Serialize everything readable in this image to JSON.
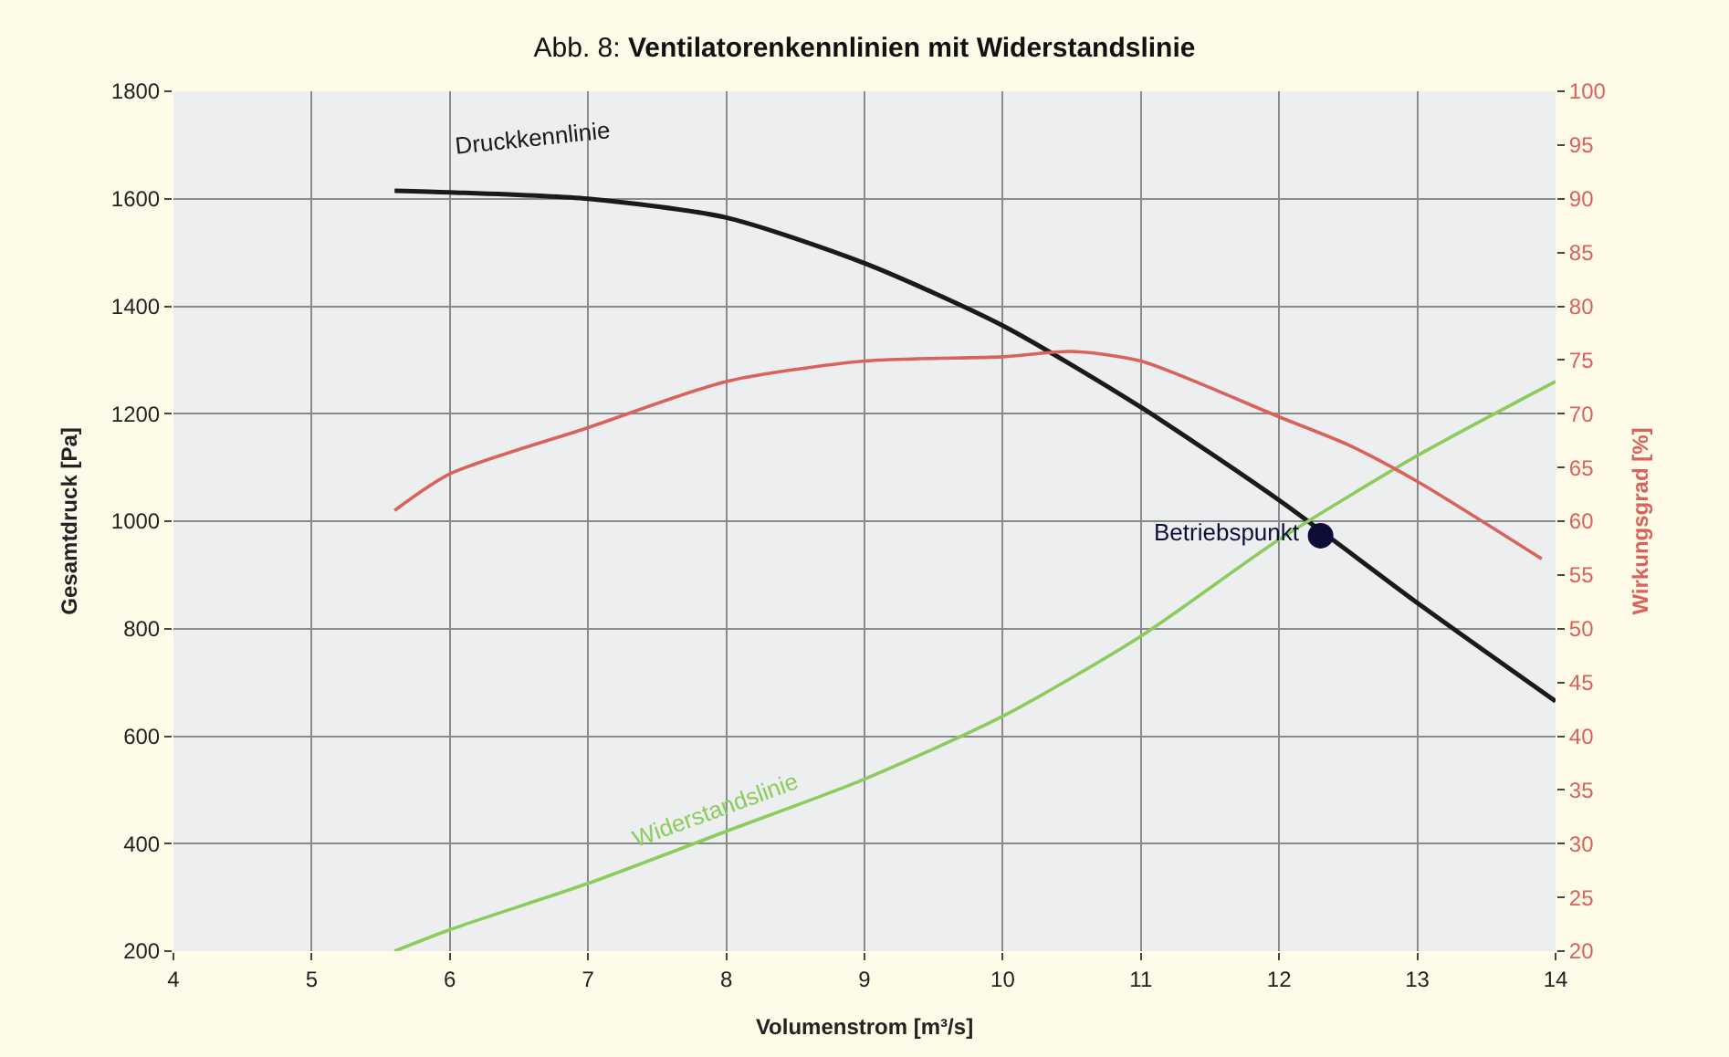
{
  "chart_data": {
    "type": "line",
    "title": "Abb. 8: Ventilatorenkennlinien mit Widerstandslinie",
    "xlabel": "Volumenstrom [m³/s]",
    "ylabel": "Gesamtdruck [Pa]",
    "y2label": "Wirkungsgrad [%]",
    "xlim": [
      4,
      14
    ],
    "xticks": [
      4,
      5,
      6,
      7,
      8,
      9,
      10,
      11,
      12,
      13,
      14
    ],
    "ylim": [
      200,
      1800
    ],
    "yticks": [
      200,
      400,
      600,
      800,
      1000,
      1200,
      1400,
      1600,
      1800
    ],
    "y2lim": [
      20,
      100
    ],
    "y2ticks": [
      20,
      25,
      30,
      35,
      40,
      45,
      50,
      55,
      60,
      65,
      70,
      75,
      80,
      85,
      90,
      95,
      100
    ],
    "grid": true,
    "legend": false,
    "marker": "none",
    "line_style": "solid",
    "series": [
      {
        "name": "Druckkennlinie",
        "color": "#1a1a1a",
        "x": [
          5.6,
          6,
          7,
          8,
          9,
          10,
          11,
          12,
          13,
          14
        ],
        "values": [
          1615,
          1612,
          1600,
          1565,
          1480,
          1364,
          1212,
          1039,
          848,
          665
        ]
      },
      {
        "color": "#d9625a",
        "axis": "y2",
        "x": [
          5.6,
          6,
          7,
          8,
          9,
          10,
          10.5,
          11,
          12,
          12.5,
          13,
          13.9
        ],
        "values": [
          61,
          64.4,
          68.7,
          73,
          74.9,
          75.3,
          75.8,
          74.9,
          69.7,
          67.1,
          63.7,
          56.5
        ]
      },
      {
        "name": "Widerstandslinie",
        "color": "#8ccc5c",
        "x": [
          5.6,
          6,
          7,
          8,
          9,
          10,
          11,
          12,
          13,
          14
        ],
        "values": [
          200,
          240,
          326,
          423,
          520,
          637,
          786,
          966,
          1122,
          1260
        ]
      },
      {
        "name": "Betriebspunkt",
        "type": "scatter",
        "marker": "circle",
        "color": "#0d0d3a",
        "x": [
          12.3
        ],
        "values": [
          973
        ]
      }
    ]
  }
}
